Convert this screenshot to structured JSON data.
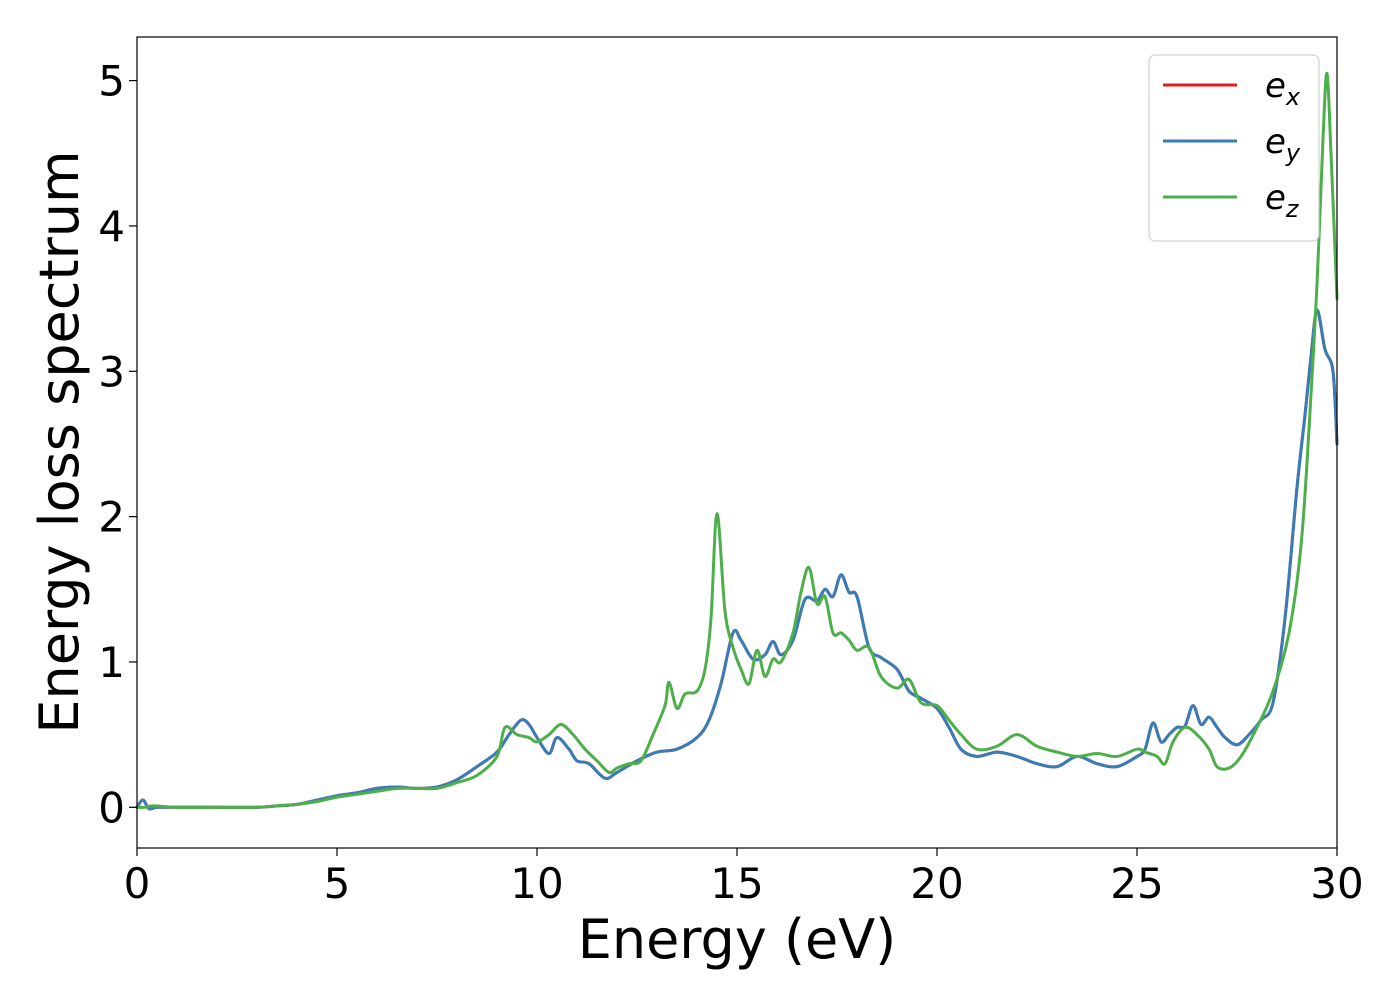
{
  "chart_data": {
    "type": "line",
    "title": "",
    "xlabel": "Energy (eV)",
    "ylabel": "Energy loss spectrum",
    "xlim": [
      0,
      30
    ],
    "ylim": [
      -0.28,
      5.3
    ],
    "xticks": [
      0,
      5,
      10,
      15,
      20,
      25,
      30
    ],
    "yticks": [
      0,
      1,
      2,
      3,
      4,
      5
    ],
    "grid": false,
    "legend_position": "top-right",
    "series": [
      {
        "name": "e",
        "subscript": "x",
        "color": "#e41a1c",
        "points": [
          [
            0,
            0
          ],
          [
            0.15,
            0.05
          ],
          [
            0.3,
            -0.01
          ],
          [
            0.5,
            0
          ],
          [
            1,
            0
          ],
          [
            2,
            0
          ],
          [
            3,
            0
          ],
          [
            3.5,
            0.01
          ],
          [
            4,
            0.02
          ],
          [
            4.5,
            0.05
          ],
          [
            5,
            0.08
          ],
          [
            5.5,
            0.1
          ],
          [
            6,
            0.13
          ],
          [
            6.5,
            0.14
          ],
          [
            7,
            0.13
          ],
          [
            7.5,
            0.14
          ],
          [
            8,
            0.19
          ],
          [
            8.5,
            0.28
          ],
          [
            9,
            0.38
          ],
          [
            9.3,
            0.5
          ],
          [
            9.6,
            0.6
          ],
          [
            9.8,
            0.57
          ],
          [
            10,
            0.48
          ],
          [
            10.3,
            0.37
          ],
          [
            10.5,
            0.48
          ],
          [
            10.8,
            0.4
          ],
          [
            11,
            0.32
          ],
          [
            11.3,
            0.3
          ],
          [
            11.7,
            0.2
          ],
          [
            12,
            0.24
          ],
          [
            12.5,
            0.32
          ],
          [
            13,
            0.38
          ],
          [
            13.5,
            0.4
          ],
          [
            14,
            0.48
          ],
          [
            14.3,
            0.6
          ],
          [
            14.6,
            0.85
          ],
          [
            14.9,
            1.2
          ],
          [
            15.1,
            1.15
          ],
          [
            15.4,
            1.02
          ],
          [
            15.7,
            1.05
          ],
          [
            15.9,
            1.14
          ],
          [
            16.1,
            1.05
          ],
          [
            16.4,
            1.15
          ],
          [
            16.7,
            1.43
          ],
          [
            17,
            1.42
          ],
          [
            17.2,
            1.5
          ],
          [
            17.4,
            1.45
          ],
          [
            17.6,
            1.6
          ],
          [
            17.8,
            1.48
          ],
          [
            18,
            1.45
          ],
          [
            18.3,
            1.1
          ],
          [
            18.6,
            1.03
          ],
          [
            19,
            0.95
          ],
          [
            19.3,
            0.8
          ],
          [
            19.6,
            0.75
          ],
          [
            20,
            0.68
          ],
          [
            20.3,
            0.55
          ],
          [
            20.6,
            0.4
          ],
          [
            21,
            0.35
          ],
          [
            21.5,
            0.38
          ],
          [
            22,
            0.35
          ],
          [
            22.5,
            0.3
          ],
          [
            23,
            0.28
          ],
          [
            23.5,
            0.35
          ],
          [
            24,
            0.3
          ],
          [
            24.5,
            0.28
          ],
          [
            25,
            0.35
          ],
          [
            25.2,
            0.4
          ],
          [
            25.4,
            0.58
          ],
          [
            25.6,
            0.45
          ],
          [
            25.8,
            0.5
          ],
          [
            26,
            0.55
          ],
          [
            26.2,
            0.56
          ],
          [
            26.4,
            0.7
          ],
          [
            26.6,
            0.57
          ],
          [
            26.8,
            0.62
          ],
          [
            27,
            0.55
          ],
          [
            27.2,
            0.48
          ],
          [
            27.5,
            0.43
          ],
          [
            27.8,
            0.5
          ],
          [
            28.1,
            0.6
          ],
          [
            28.4,
            0.72
          ],
          [
            28.7,
            1.3
          ],
          [
            29,
            2.2
          ],
          [
            29.2,
            2.7
          ],
          [
            29.35,
            3.1
          ],
          [
            29.5,
            3.42
          ],
          [
            29.7,
            3.15
          ],
          [
            29.9,
            3.0
          ],
          [
            30,
            2.5
          ]
        ]
      },
      {
        "name": "e",
        "subscript": "y",
        "color": "#377eb8",
        "points": [
          [
            0,
            0
          ],
          [
            0.15,
            0.05
          ],
          [
            0.3,
            -0.01
          ],
          [
            0.5,
            0
          ],
          [
            1,
            0
          ],
          [
            2,
            0
          ],
          [
            3,
            0
          ],
          [
            3.5,
            0.01
          ],
          [
            4,
            0.02
          ],
          [
            4.5,
            0.05
          ],
          [
            5,
            0.08
          ],
          [
            5.5,
            0.1
          ],
          [
            6,
            0.13
          ],
          [
            6.5,
            0.14
          ],
          [
            7,
            0.13
          ],
          [
            7.5,
            0.14
          ],
          [
            8,
            0.19
          ],
          [
            8.5,
            0.28
          ],
          [
            9,
            0.38
          ],
          [
            9.3,
            0.5
          ],
          [
            9.6,
            0.6
          ],
          [
            9.8,
            0.57
          ],
          [
            10,
            0.48
          ],
          [
            10.3,
            0.37
          ],
          [
            10.5,
            0.48
          ],
          [
            10.8,
            0.4
          ],
          [
            11,
            0.32
          ],
          [
            11.3,
            0.3
          ],
          [
            11.7,
            0.2
          ],
          [
            12,
            0.24
          ],
          [
            12.5,
            0.32
          ],
          [
            13,
            0.38
          ],
          [
            13.5,
            0.4
          ],
          [
            14,
            0.48
          ],
          [
            14.3,
            0.6
          ],
          [
            14.6,
            0.85
          ],
          [
            14.9,
            1.2
          ],
          [
            15.1,
            1.15
          ],
          [
            15.4,
            1.02
          ],
          [
            15.7,
            1.05
          ],
          [
            15.9,
            1.14
          ],
          [
            16.1,
            1.05
          ],
          [
            16.4,
            1.15
          ],
          [
            16.7,
            1.43
          ],
          [
            17,
            1.42
          ],
          [
            17.2,
            1.5
          ],
          [
            17.4,
            1.45
          ],
          [
            17.6,
            1.6
          ],
          [
            17.8,
            1.48
          ],
          [
            18,
            1.45
          ],
          [
            18.3,
            1.1
          ],
          [
            18.6,
            1.03
          ],
          [
            19,
            0.95
          ],
          [
            19.3,
            0.8
          ],
          [
            19.6,
            0.75
          ],
          [
            20,
            0.68
          ],
          [
            20.3,
            0.55
          ],
          [
            20.6,
            0.4
          ],
          [
            21,
            0.35
          ],
          [
            21.5,
            0.38
          ],
          [
            22,
            0.35
          ],
          [
            22.5,
            0.3
          ],
          [
            23,
            0.28
          ],
          [
            23.5,
            0.35
          ],
          [
            24,
            0.3
          ],
          [
            24.5,
            0.28
          ],
          [
            25,
            0.35
          ],
          [
            25.2,
            0.4
          ],
          [
            25.4,
            0.58
          ],
          [
            25.6,
            0.45
          ],
          [
            25.8,
            0.5
          ],
          [
            26,
            0.55
          ],
          [
            26.2,
            0.56
          ],
          [
            26.4,
            0.7
          ],
          [
            26.6,
            0.57
          ],
          [
            26.8,
            0.62
          ],
          [
            27,
            0.55
          ],
          [
            27.2,
            0.48
          ],
          [
            27.5,
            0.43
          ],
          [
            27.8,
            0.5
          ],
          [
            28.1,
            0.6
          ],
          [
            28.4,
            0.72
          ],
          [
            28.7,
            1.3
          ],
          [
            29,
            2.2
          ],
          [
            29.2,
            2.7
          ],
          [
            29.35,
            3.1
          ],
          [
            29.5,
            3.42
          ],
          [
            29.7,
            3.15
          ],
          [
            29.9,
            3.0
          ],
          [
            30,
            2.5
          ]
        ]
      },
      {
        "name": "e",
        "subscript": "z",
        "color": "#4daf4a",
        "points": [
          [
            0,
            0
          ],
          [
            0.2,
            0
          ],
          [
            0.4,
            0.01
          ],
          [
            1,
            0
          ],
          [
            2,
            0
          ],
          [
            3,
            0
          ],
          [
            3.5,
            0.01
          ],
          [
            4,
            0.02
          ],
          [
            4.5,
            0.04
          ],
          [
            5,
            0.07
          ],
          [
            5.5,
            0.09
          ],
          [
            6,
            0.11
          ],
          [
            6.5,
            0.13
          ],
          [
            7,
            0.13
          ],
          [
            7.5,
            0.13
          ],
          [
            8,
            0.17
          ],
          [
            8.5,
            0.22
          ],
          [
            9,
            0.35
          ],
          [
            9.2,
            0.55
          ],
          [
            9.5,
            0.5
          ],
          [
            9.8,
            0.48
          ],
          [
            10,
            0.45
          ],
          [
            10.3,
            0.5
          ],
          [
            10.6,
            0.57
          ],
          [
            10.9,
            0.5
          ],
          [
            11.2,
            0.4
          ],
          [
            11.5,
            0.32
          ],
          [
            11.8,
            0.24
          ],
          [
            12,
            0.27
          ],
          [
            12.3,
            0.3
          ],
          [
            12.6,
            0.32
          ],
          [
            12.9,
            0.5
          ],
          [
            13.2,
            0.7
          ],
          [
            13.3,
            0.86
          ],
          [
            13.5,
            0.68
          ],
          [
            13.7,
            0.78
          ],
          [
            14,
            0.8
          ],
          [
            14.2,
            0.95
          ],
          [
            14.35,
            1.3
          ],
          [
            14.5,
            2.02
          ],
          [
            14.7,
            1.35
          ],
          [
            14.9,
            1.1
          ],
          [
            15.1,
            0.95
          ],
          [
            15.3,
            0.85
          ],
          [
            15.5,
            1.08
          ],
          [
            15.7,
            0.9
          ],
          [
            15.9,
            1.02
          ],
          [
            16.1,
            1.0
          ],
          [
            16.4,
            1.2
          ],
          [
            16.6,
            1.48
          ],
          [
            16.8,
            1.65
          ],
          [
            17,
            1.4
          ],
          [
            17.2,
            1.45
          ],
          [
            17.4,
            1.2
          ],
          [
            17.6,
            1.2
          ],
          [
            17.8,
            1.15
          ],
          [
            18,
            1.08
          ],
          [
            18.3,
            1.1
          ],
          [
            18.6,
            0.9
          ],
          [
            19,
            0.82
          ],
          [
            19.3,
            0.88
          ],
          [
            19.6,
            0.72
          ],
          [
            20,
            0.7
          ],
          [
            20.3,
            0.6
          ],
          [
            20.6,
            0.5
          ],
          [
            21,
            0.4
          ],
          [
            21.5,
            0.42
          ],
          [
            22,
            0.5
          ],
          [
            22.5,
            0.42
          ],
          [
            23,
            0.38
          ],
          [
            23.5,
            0.35
          ],
          [
            24,
            0.37
          ],
          [
            24.5,
            0.35
          ],
          [
            25,
            0.4
          ],
          [
            25.2,
            0.38
          ],
          [
            25.5,
            0.35
          ],
          [
            25.7,
            0.3
          ],
          [
            25.9,
            0.45
          ],
          [
            26.2,
            0.55
          ],
          [
            26.5,
            0.5
          ],
          [
            26.8,
            0.4
          ],
          [
            27,
            0.28
          ],
          [
            27.3,
            0.27
          ],
          [
            27.6,
            0.35
          ],
          [
            28,
            0.55
          ],
          [
            28.4,
            0.8
          ],
          [
            28.8,
            1.2
          ],
          [
            29.1,
            1.8
          ],
          [
            29.3,
            2.6
          ],
          [
            29.5,
            3.6
          ],
          [
            29.65,
            4.6
          ],
          [
            29.75,
            5.05
          ],
          [
            29.85,
            4.5
          ],
          [
            30,
            3.5
          ]
        ]
      }
    ]
  }
}
